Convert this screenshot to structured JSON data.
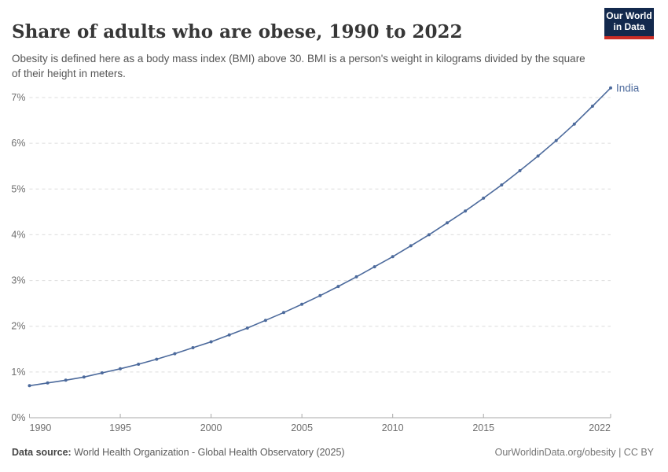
{
  "header": {
    "title": "Share of adults who are obese, 1990 to 2022",
    "subtitle": "Obesity is defined here as a body mass index (BMI) above 30. BMI is a person's weight in kilograms divided by the square of their height in meters.",
    "logo": {
      "line1": "Our World",
      "line2": "in Data"
    }
  },
  "footer": {
    "source_label": "Data source:",
    "source_text": " World Health Organization - Global Health Observatory (2025)",
    "right_text": "OurWorldinData.org/obesity | CC BY"
  },
  "colors": {
    "line": "#4C6A9C",
    "logo_bg": "#13294D",
    "logo_red": "#CB2D26",
    "grid": "#dcdcdc",
    "axis": "#a8a8a8",
    "tick_label": "#6e6e6e",
    "title_text": "#373737"
  },
  "chart_data": {
    "type": "line",
    "title": "Share of adults who are obese, 1990 to 2022",
    "xlabel": "",
    "ylabel": "",
    "grid": "horizontal-dashed",
    "legend": "end-of-line-label",
    "xlim": [
      1990,
      2022
    ],
    "ylim": [
      0,
      7
    ],
    "x_ticks": [
      1990,
      1995,
      2000,
      2005,
      2010,
      2015,
      2022
    ],
    "y_ticks": [
      0,
      1,
      2,
      3,
      4,
      5,
      6,
      7
    ],
    "y_tick_suffix": "%",
    "series": [
      {
        "name": "India",
        "x": [
          1990,
          1991,
          1992,
          1993,
          1994,
          1995,
          1996,
          1997,
          1998,
          1999,
          2000,
          2001,
          2002,
          2003,
          2004,
          2005,
          2006,
          2007,
          2008,
          2009,
          2010,
          2011,
          2012,
          2013,
          2014,
          2015,
          2016,
          2017,
          2018,
          2019,
          2020,
          2021,
          2022
        ],
        "values": [
          0.7,
          0.76,
          0.82,
          0.89,
          0.98,
          1.07,
          1.17,
          1.28,
          1.4,
          1.53,
          1.66,
          1.81,
          1.96,
          2.13,
          2.3,
          2.48,
          2.67,
          2.87,
          3.08,
          3.3,
          3.52,
          3.76,
          4.0,
          4.26,
          4.52,
          4.8,
          5.09,
          5.4,
          5.72,
          6.06,
          6.42,
          6.81,
          7.21
        ]
      }
    ]
  }
}
